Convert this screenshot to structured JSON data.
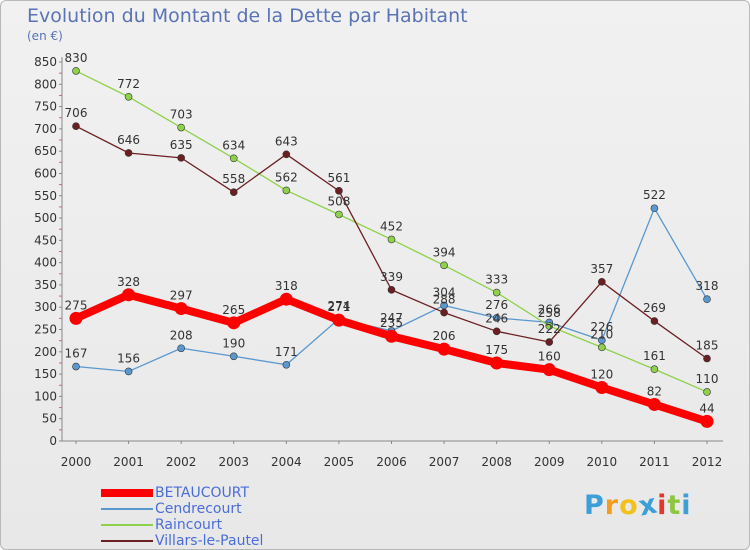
{
  "chart_data": {
    "type": "line",
    "title": "Evolution du Montant de la Dette par Habitant",
    "unit_label": "(en €)",
    "x": [
      "2000",
      "2001",
      "2002",
      "2003",
      "2004",
      "2005",
      "2006",
      "2007",
      "2008",
      "2009",
      "2010",
      "2011",
      "2012"
    ],
    "ylim": [
      0,
      850
    ],
    "yticks": [
      0,
      50,
      100,
      150,
      200,
      250,
      300,
      350,
      400,
      450,
      500,
      550,
      600,
      650,
      700,
      750,
      800,
      850
    ],
    "grid": false,
    "legend_position": "bottom-left",
    "series": [
      {
        "name": "BETAUCOURT",
        "color": "#ff0000",
        "values": [
          275,
          328,
          297,
          265,
          318,
          271,
          235,
          206,
          175,
          160,
          120,
          82,
          44
        ]
      },
      {
        "name": "Cendrecourt",
        "color": "#5a98d0",
        "values": [
          167,
          156,
          208,
          190,
          171,
          274,
          247,
          304,
          276,
          266,
          226,
          522,
          318
        ]
      },
      {
        "name": "Raincourt",
        "color": "#8ed14a",
        "values": [
          830,
          772,
          703,
          634,
          562,
          508,
          452,
          394,
          333,
          258,
          210,
          161,
          110
        ]
      },
      {
        "name": "Villars-le-Pautel",
        "color": "#6b1f22",
        "values": [
          706,
          646,
          635,
          558,
          643,
          561,
          339,
          288,
          246,
          222,
          357,
          269,
          185
        ]
      }
    ]
  },
  "logo": {
    "letters": [
      "P",
      "r",
      "o",
      "x",
      "i",
      "t",
      "i"
    ],
    "colors": [
      "#3b9fd8",
      "#f39c1f",
      "#f2c21b",
      "#3b9fd8",
      "#e0392b",
      "#8ec63f",
      "#3b9fd8"
    ]
  }
}
